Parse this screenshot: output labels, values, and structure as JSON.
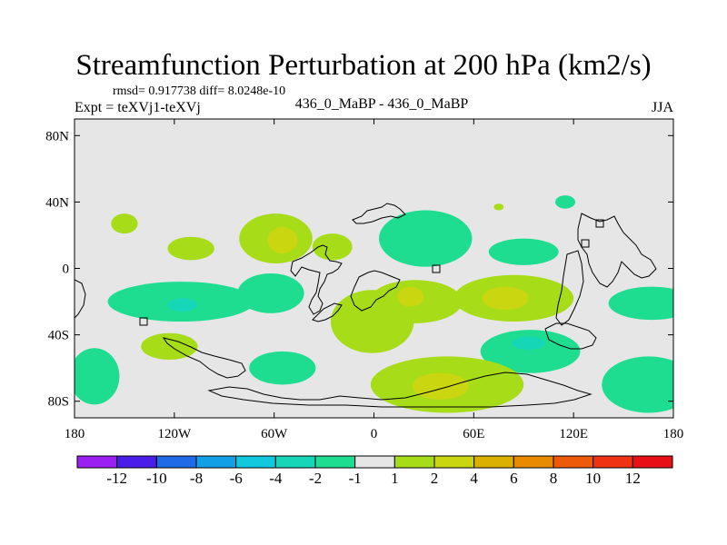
{
  "chart_data": {
    "type": "contour map",
    "title": "Streamfunction Perturbation at 200 hPa (km2/s)",
    "left_subtitle": "Expt = teXVj1-teXVj",
    "stats": "rmsd= 0.917738 diff= 8.0248e-10",
    "center_subtitle": "436_0_MaBP - 436_0_MaBP",
    "right_subtitle": "JJA",
    "x_ticks": [
      {
        "lon": -180,
        "label": "180"
      },
      {
        "lon": -120,
        "label": "120W"
      },
      {
        "lon": -60,
        "label": "60W"
      },
      {
        "lon": 0,
        "label": "0"
      },
      {
        "lon": 60,
        "label": "60E"
      },
      {
        "lon": 120,
        "label": "120E"
      },
      {
        "lon": 180,
        "label": "180"
      }
    ],
    "y_ticks": [
      {
        "lat": 80,
        "label": "80N"
      },
      {
        "lat": 40,
        "label": "40N"
      },
      {
        "lat": 0,
        "label": "0"
      },
      {
        "lat": -40,
        "label": "40S"
      },
      {
        "lat": -80,
        "label": "80S"
      }
    ],
    "xlim": [
      -180,
      180
    ],
    "ylim": [
      -90,
      90
    ],
    "colorbar": {
      "labels": [
        "-12",
        "-10",
        "-8",
        "-6",
        "-4",
        "-2",
        "-1",
        "1",
        "2",
        "4",
        "6",
        "8",
        "10",
        "12"
      ],
      "colors": [
        "#9a1ff0",
        "#4a1ee8",
        "#1f6ae6",
        "#139fe6",
        "#12c8de",
        "#16d6b8",
        "#1fdd90",
        "#e6e6e6",
        "#a6dc18",
        "#cad60f",
        "#dcb000",
        "#e88a00",
        "#ec5a0a",
        "#ee3212",
        "#e81016"
      ]
    },
    "contour_regions": [
      {
        "level": "1 to 2",
        "color": "#a6dc18",
        "center": [
          -150,
          27
        ],
        "radii": [
          8,
          6
        ]
      },
      {
        "level": "1 to 2",
        "color": "#a6dc18",
        "center": [
          -110,
          12
        ],
        "radii": [
          14,
          7
        ]
      },
      {
        "level": "1 to 2",
        "color": "#a6dc18",
        "center": [
          -59,
          18
        ],
        "radii": [
          22,
          15
        ]
      },
      {
        "level": "2 to 4",
        "color": "#cad60f",
        "center": [
          -55,
          17
        ],
        "radii": [
          9,
          8
        ]
      },
      {
        "level": "1 to 2",
        "color": "#a6dc18",
        "center": [
          -25,
          13
        ],
        "radii": [
          12,
          8
        ]
      },
      {
        "level": "-1 to -2",
        "color": "#1fdd90",
        "center": [
          -116,
          -20
        ],
        "radii": [
          44,
          12
        ]
      },
      {
        "level": "-2 to -4",
        "color": "#16d6b8",
        "center": [
          -115,
          -22
        ],
        "radii": [
          9,
          4
        ]
      },
      {
        "level": "-1 to -2",
        "color": "#1fdd90",
        "center": [
          -62,
          -15
        ],
        "radii": [
          20,
          12
        ]
      },
      {
        "level": "1 to 2",
        "color": "#a6dc18",
        "center": [
          -123,
          -47
        ],
        "radii": [
          17,
          8
        ]
      },
      {
        "level": "-1 to -2",
        "color": "#1fdd90",
        "center": [
          -168,
          -65
        ],
        "radii": [
          15,
          17
        ]
      },
      {
        "level": "-1 to -2",
        "color": "#1fdd90",
        "center": [
          -55,
          -60
        ],
        "radii": [
          20,
          10
        ]
      },
      {
        "level": "1 to 2",
        "color": "#a6dc18",
        "center": [
          -1,
          -32
        ],
        "radii": [
          25,
          19
        ]
      },
      {
        "level": "1 to 2",
        "color": "#a6dc18",
        "center": [
          25,
          -20
        ],
        "radii": [
          28,
          13
        ]
      },
      {
        "level": "2 to 4",
        "color": "#cad60f",
        "center": [
          22,
          -17
        ],
        "radii": [
          8,
          6
        ]
      },
      {
        "level": "-1 to -2",
        "color": "#1fdd90",
        "center": [
          31,
          18
        ],
        "radii": [
          28,
          17
        ]
      },
      {
        "level": "-1 to -2",
        "color": "#1fdd90",
        "center": [
          90,
          10
        ],
        "radii": [
          21,
          8
        ]
      },
      {
        "level": "1 to 2",
        "color": "#a6dc18",
        "center": [
          84,
          -18
        ],
        "radii": [
          36,
          14
        ]
      },
      {
        "level": "2 to 4",
        "color": "#cad60f",
        "center": [
          79,
          -18
        ],
        "radii": [
          14,
          7
        ]
      },
      {
        "level": "-1 to -2",
        "color": "#1fdd90",
        "center": [
          94,
          -50
        ],
        "radii": [
          30,
          13
        ]
      },
      {
        "level": "-2 to -4",
        "color": "#16d6b8",
        "center": [
          93,
          -45
        ],
        "radii": [
          10,
          4
        ]
      },
      {
        "level": "1 to 2",
        "color": "#a6dc18",
        "center": [
          44,
          -70
        ],
        "radii": [
          46,
          17
        ]
      },
      {
        "level": "2 to 4",
        "color": "#cad60f",
        "center": [
          40,
          -71
        ],
        "radii": [
          17,
          8
        ]
      },
      {
        "level": "-1 to -2",
        "color": "#1fdd90",
        "center": [
          167,
          -21
        ],
        "radii": [
          26,
          10
        ]
      },
      {
        "level": "-1 to -2",
        "color": "#1fdd90",
        "center": [
          165,
          -70
        ],
        "radii": [
          28,
          17
        ]
      },
      {
        "level": "-1 to -2",
        "color": "#1fdd90",
        "center": [
          115,
          40
        ],
        "radii": [
          6,
          4
        ]
      },
      {
        "level": "1 to 2",
        "color": "#a6dc18",
        "center": [
          75,
          37
        ],
        "radii": [
          3,
          2
        ]
      }
    ]
  }
}
